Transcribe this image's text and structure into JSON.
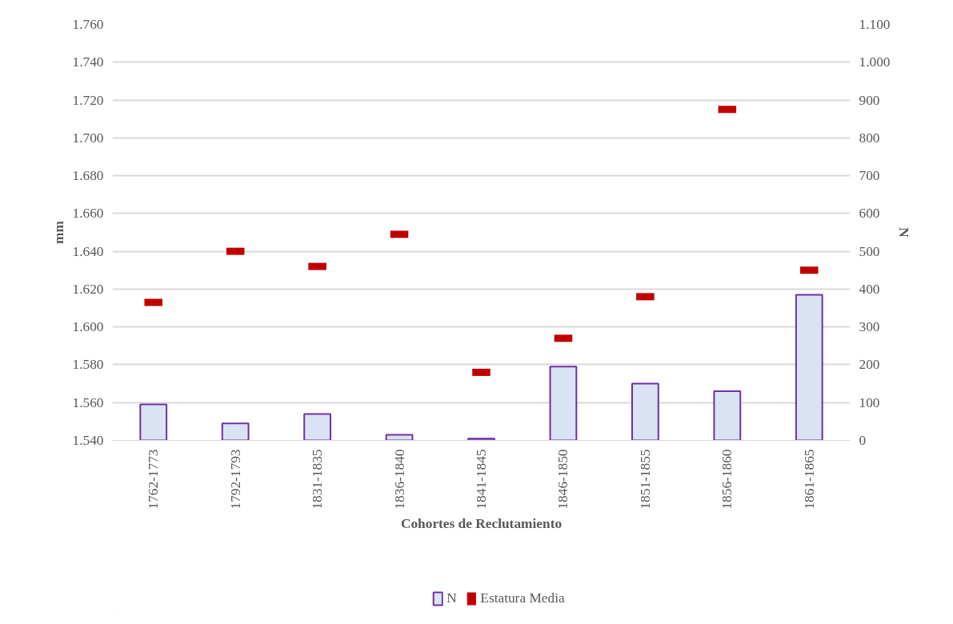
{
  "chart_data": {
    "type": "bar",
    "xlabel": "Cohortes de Reclutamiento",
    "ylabel": "mm",
    "y2label": "N",
    "categories": [
      "1762-1773",
      "1792-1793",
      "1831-1835",
      "1836-1840",
      "1841-1845",
      "1846-1850",
      "1851-1855",
      "1856-1860",
      "1861-1865"
    ],
    "series": [
      {
        "name": "N",
        "axis": "y2",
        "color": "#dae3f3",
        "values": [
          95,
          45,
          70,
          15,
          5,
          195,
          150,
          130,
          385
        ]
      },
      {
        "name": "Estatura Media",
        "type": "scatter",
        "color": "#c00000",
        "values": [
          1.613,
          1.64,
          1.632,
          1.649,
          1.576,
          1.594,
          1.616,
          1.715,
          1.63
        ]
      }
    ],
    "ylim": [
      1.54,
      1.76
    ],
    "yticks": [
      {
        "value": 1.54,
        "label": "1.540"
      },
      {
        "value": 1.56,
        "label": "1.560"
      },
      {
        "value": 1.58,
        "label": "1.580"
      },
      {
        "value": 1.6,
        "label": "1.600"
      },
      {
        "value": 1.62,
        "label": "1.620"
      },
      {
        "value": 1.64,
        "label": "1.640"
      },
      {
        "value": 1.66,
        "label": "1.660"
      },
      {
        "value": 1.68,
        "label": "1.680"
      },
      {
        "value": 1.7,
        "label": "1.700"
      },
      {
        "value": 1.72,
        "label": "1.720"
      },
      {
        "value": 1.74,
        "label": "1.740"
      },
      {
        "value": 1.76,
        "label": "1.760"
      }
    ],
    "y2lim": [
      0,
      1100
    ],
    "y2ticks": [
      0,
      100,
      200,
      300,
      400,
      500,
      600,
      700,
      800,
      900,
      {
        "value": 1000,
        "label": "1.000"
      },
      {
        "value": 1100,
        "label": "1.100"
      }
    ],
    "grid": "y",
    "legend": "bottom"
  }
}
